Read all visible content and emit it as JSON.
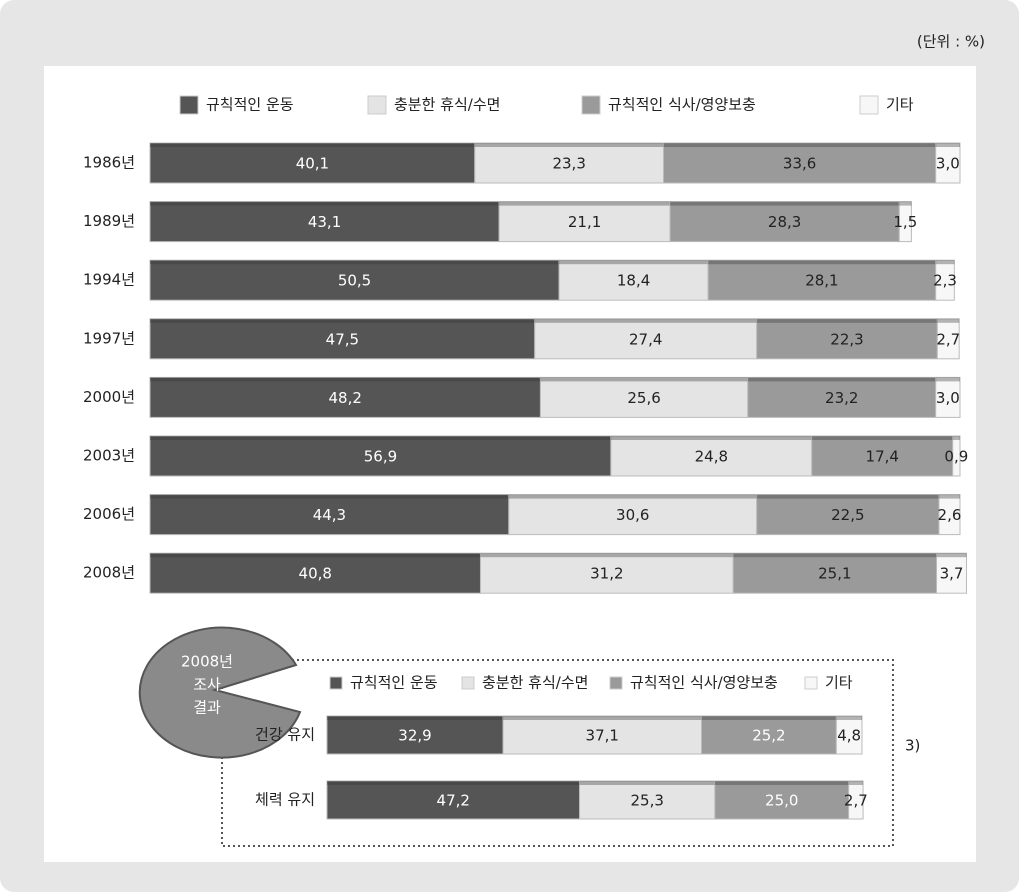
{
  "chart_data": [
    {
      "type": "bar",
      "orientation": "horizontal",
      "stacked": true,
      "unit": "(단위 : %)",
      "categories": [
        "1986년",
        "1989년",
        "1994년",
        "1997년",
        "2000년",
        "2003년",
        "2006년",
        "2008년"
      ],
      "xlim": [
        0,
        100
      ],
      "series": [
        {
          "name": "규칙적인 운동",
          "color": "#555555",
          "values": [
            40.1,
            43.1,
            50.5,
            47.5,
            48.2,
            56.9,
            44.3,
            40.8
          ],
          "value_labels": [
            "40,1",
            "43,1",
            "50,5",
            "47,5",
            "48,2",
            "56,9",
            "44,3",
            "40,8"
          ]
        },
        {
          "name": "충분한 휴식/수면",
          "color": "#e4e4e4",
          "values": [
            23.3,
            21.1,
            18.4,
            27.4,
            25.6,
            24.8,
            30.6,
            31.2
          ],
          "value_labels": [
            "23,3",
            "21,1",
            "18,4",
            "27,4",
            "25,6",
            "24,8",
            "30,6",
            "31,2"
          ]
        },
        {
          "name": "규칙적인 식사/영양보충",
          "color": "#9a9a9a",
          "values": [
            33.6,
            28.3,
            28.1,
            22.3,
            23.2,
            17.4,
            22.5,
            25.1
          ],
          "value_labels": [
            "33,6",
            "28,3",
            "28,1",
            "22,3",
            "23,2",
            "17,4",
            "22,5",
            "25,1"
          ]
        },
        {
          "name": "기타",
          "color": "#f7f7f7",
          "values": [
            3.0,
            1.5,
            2.3,
            2.7,
            3.0,
            0.9,
            2.6,
            3.7
          ],
          "value_labels": [
            "3,0",
            "1,5",
            "2,3",
            "2,7",
            "3,0",
            "0,9",
            "2,6",
            "3,7"
          ]
        }
      ]
    },
    {
      "type": "bar",
      "orientation": "horizontal",
      "stacked": true,
      "badge": [
        "2008년",
        "조사",
        "결과"
      ],
      "note": "3)",
      "categories": [
        "건강 유지",
        "체력 유지"
      ],
      "xlim": [
        0,
        100
      ],
      "series": [
        {
          "name": "규칙적인 운동",
          "color": "#555555",
          "values": [
            32.9,
            47.2
          ],
          "value_labels": [
            "32,9",
            "47,2"
          ]
        },
        {
          "name": "충분한 휴식/수면",
          "color": "#e4e4e4",
          "values": [
            37.1,
            25.3
          ],
          "value_labels": [
            "37,1",
            "25,3"
          ]
        },
        {
          "name": "규칙적인 식사/영양보충",
          "color": "#9a9a9a",
          "values": [
            25.2,
            25.0
          ],
          "value_labels": [
            "25,2",
            "25,0"
          ]
        },
        {
          "name": "기타",
          "color": "#f7f7f7",
          "values": [
            4.8,
            2.7
          ],
          "value_labels": [
            "4,8",
            "2,7"
          ]
        }
      ]
    }
  ]
}
